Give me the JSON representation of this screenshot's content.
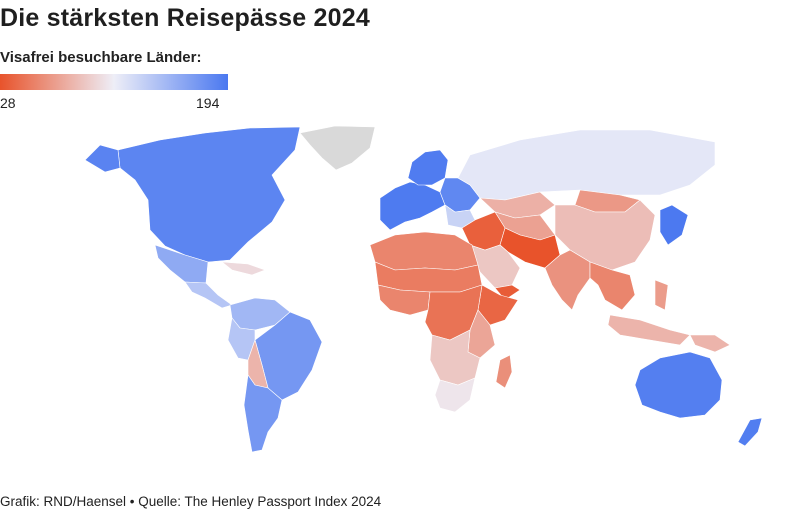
{
  "title": "Die stärksten Reisepässe 2024",
  "legend": {
    "title": "Visafrei besuchbare Länder:",
    "min": "28",
    "max": "194",
    "min_value": 28,
    "max_value": 194,
    "color_low": "#e8532b",
    "color_mid": "#eeeef7",
    "color_high": "#4a78f0",
    "no_data_color": "#d9d9d9"
  },
  "regions": [
    {
      "id": "north-america",
      "value": 185
    },
    {
      "id": "greenland",
      "value": null
    },
    {
      "id": "alaska",
      "value": 186
    },
    {
      "id": "mexico",
      "value": 159
    },
    {
      "id": "central-america",
      "value": 140
    },
    {
      "id": "caribbean",
      "value": 100
    },
    {
      "id": "south-america-north",
      "value": 150
    },
    {
      "id": "brazil",
      "value": 172
    },
    {
      "id": "bolivia",
      "value": 80
    },
    {
      "id": "peru",
      "value": 140
    },
    {
      "id": "argentina-chile",
      "value": 172
    },
    {
      "id": "western-europe",
      "value": 192
    },
    {
      "id": "scandinavia",
      "value": 191
    },
    {
      "id": "eastern-europe",
      "value": 183
    },
    {
      "id": "balkans",
      "value": 130
    },
    {
      "id": "russia",
      "value": 116
    },
    {
      "id": "kazakhstan",
      "value": 78
    },
    {
      "id": "mongolia",
      "value": 65
    },
    {
      "id": "china",
      "value": 85
    },
    {
      "id": "korea-japan",
      "value": 193
    },
    {
      "id": "north-africa",
      "value": 55
    },
    {
      "id": "sahel",
      "value": 50
    },
    {
      "id": "middle-east",
      "value": 35
    },
    {
      "id": "arabian-peninsula",
      "value": 90
    },
    {
      "id": "yemen",
      "value": 33
    },
    {
      "id": "iran-afghanistan",
      "value": 28
    },
    {
      "id": "central-asia",
      "value": 70
    },
    {
      "id": "india",
      "value": 62
    },
    {
      "id": "southeast-asia",
      "value": 55
    },
    {
      "id": "malaysia-indonesia",
      "value": 80
    },
    {
      "id": "philippines",
      "value": 67
    },
    {
      "id": "west-africa",
      "value": 55
    },
    {
      "id": "horn-of-africa",
      "value": 38
    },
    {
      "id": "central-africa",
      "value": 45
    },
    {
      "id": "east-africa",
      "value": 72
    },
    {
      "id": "southern-africa",
      "value": 90
    },
    {
      "id": "south-africa",
      "value": 106
    },
    {
      "id": "madagascar",
      "value": 60
    },
    {
      "id": "australia",
      "value": 189
    },
    {
      "id": "new-zealand",
      "value": 190
    },
    {
      "id": "papua",
      "value": 80
    }
  ],
  "footer": "Grafik: RND/Haensel • Quelle: The Henley Passport Index 2024"
}
